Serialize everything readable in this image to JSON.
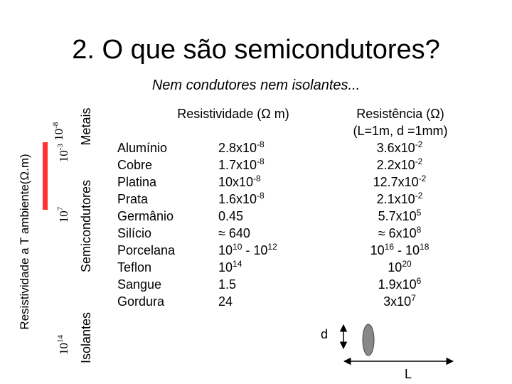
{
  "header": {
    "title": "2. O que são semicondutores?",
    "subtitle": "Nem condutores nem isolantes..."
  },
  "scale": {
    "label": "Resistividade a T ambiente(Ω.m)",
    "ticks": [
      [
        "10",
        "-3"
      ],
      [
        "10",
        "-8"
      ],
      [
        "10",
        "7"
      ],
      [
        "10",
        "14"
      ]
    ],
    "regions": [
      "Metais",
      "Semicondutores",
      "Isolantes"
    ]
  },
  "table": {
    "headers": [
      "Resistividade (Ω m)",
      "Resistência (Ω)",
      "(L=1m, d =1mm)"
    ],
    "rows": [
      {
        "material": "Alumínio",
        "resistivity": [
          "2.8x10",
          "-8"
        ],
        "resistance": [
          "3.6x10",
          "-2"
        ]
      },
      {
        "material": "Cobre",
        "resistivity": [
          "1.7x10",
          "-8"
        ],
        "resistance": [
          "2.2x10",
          "-2"
        ]
      },
      {
        "material": "Platina",
        "resistivity": [
          "10x10",
          "-8"
        ],
        "resistance": [
          "12.7x10",
          "-2"
        ]
      },
      {
        "material": "Prata",
        "resistivity": [
          "1.6x10",
          "-8"
        ],
        "resistance": [
          "2.1x10",
          "-2"
        ]
      },
      {
        "material": "Germânio",
        "resistivity": [
          "0.45"
        ],
        "resistance": [
          "5.7x10",
          "5"
        ]
      },
      {
        "material": "Silício",
        "resistivity": [
          "≈ 640"
        ],
        "resistance": [
          "≈ 6x10",
          "8"
        ]
      },
      {
        "material": "Porcelana",
        "resistivity": [
          "10",
          "10",
          " - 10",
          "12"
        ],
        "resistance": [
          "10",
          "16",
          " - 10",
          "18"
        ]
      },
      {
        "material": "Teflon",
        "resistivity": [
          "10",
          "14"
        ],
        "resistance": [
          "10",
          "20"
        ]
      },
      {
        "material": "Sangue",
        "resistivity": [
          "1.5"
        ],
        "resistance": [
          "1.9x10",
          "6"
        ]
      },
      {
        "material": "Gordura",
        "resistivity": [
          "24"
        ],
        "resistance": [
          "3x10",
          "7"
        ]
      }
    ]
  },
  "diagram": {
    "d": "d",
    "L": "L"
  }
}
